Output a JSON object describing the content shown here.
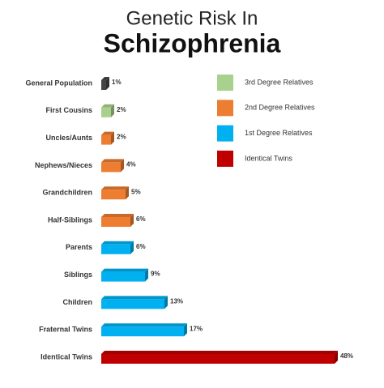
{
  "chart_data": {
    "type": "bar",
    "orientation": "horizontal",
    "title": "Genetic Risk In",
    "subtitle": "Schizophrenia",
    "categories": [
      "General Population",
      "First Cousins",
      "Uncles/Aunts",
      "Nephews/Nieces",
      "Grandchildren",
      "Half-Siblings",
      "Parents",
      "Siblings",
      "Children",
      "Fraternal Twins",
      "Identical Twins"
    ],
    "values": [
      1,
      2,
      2,
      4,
      5,
      6,
      6,
      9,
      13,
      17,
      48
    ],
    "value_labels": [
      "1%",
      "2%",
      "2%",
      "4%",
      "5%",
      "6%",
      "6%",
      "9%",
      "13%",
      "17%",
      "48%"
    ],
    "colors": [
      "#454545",
      "#a9d18e",
      "#ed7d31",
      "#ed7d31",
      "#ed7d31",
      "#ed7d31",
      "#00b0f0",
      "#00b0f0",
      "#00b0f0",
      "#00b0f0",
      "#c00000"
    ],
    "legend": [
      {
        "name": "3rd Degree Relatives",
        "color": "#a9d18e"
      },
      {
        "name": "2nd Degree Relatives",
        "color": "#ed7d31"
      },
      {
        "name": "1st Degree Relatives",
        "color": "#00b0f0"
      },
      {
        "name": "Identical Twins",
        "color": "#c00000"
      }
    ]
  }
}
